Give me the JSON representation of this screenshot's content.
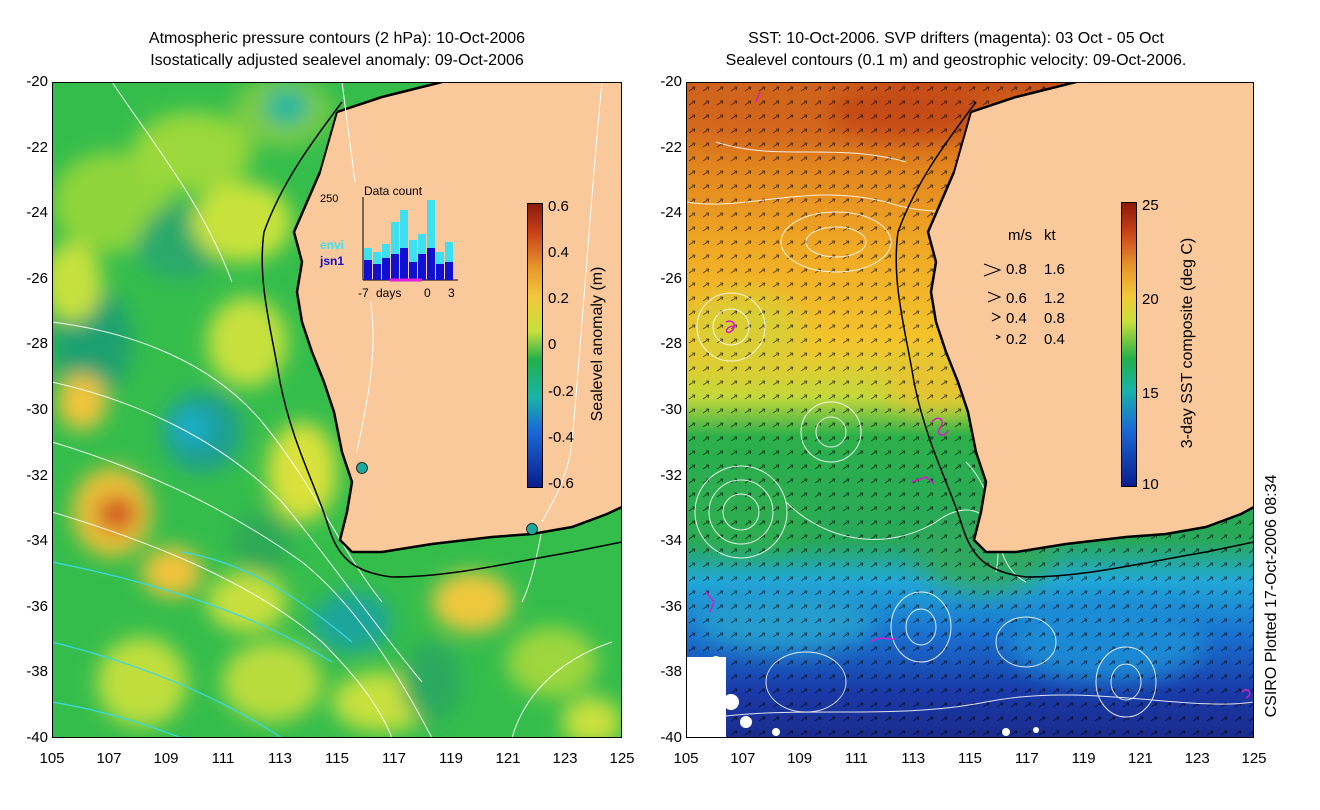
{
  "left_panel": {
    "title_line1": "Atmospheric pressure contours (2 hPa): 10-Oct-2006",
    "title_line2": "Isostatically adjusted sealevel anomaly: 09-Oct-2006",
    "colorbar_label": "Sealevel anomaly (m)",
    "colorbar_ticks": [
      "0.6",
      "0.4",
      "0.2",
      "0",
      "-0.2",
      "-0.4",
      "-0.6"
    ],
    "inset": {
      "title": "Data count",
      "ymax_label": "250",
      "legend": [
        "envi",
        "jsn1"
      ],
      "xlabels": [
        "-7",
        "days",
        "0",
        "3"
      ]
    }
  },
  "right_panel": {
    "title_line1": "SST: 10-Oct-2006. SVP drifters (magenta): 03 Oct - 05 Oct",
    "title_line2": "Sealevel contours (0.1 m) and geostrophic velocity: 09-Oct-2006.",
    "colorbar_label": "3-day SST composite (deg C)",
    "colorbar_ticks": [
      "25",
      "20",
      "15",
      "10"
    ],
    "speed_legend": {
      "header_ms": "m/s",
      "header_kt": "kt",
      "rows": [
        {
          "ms": "0.8",
          "kt": "1.6"
        },
        {
          "ms": "0.6",
          "kt": "1.2"
        },
        {
          "ms": "0.4",
          "kt": "0.8"
        },
        {
          "ms": "0.2",
          "kt": "0.4"
        }
      ]
    }
  },
  "axes": {
    "lat_labels": [
      "-20",
      "-22",
      "-24",
      "-26",
      "-28",
      "-30",
      "-32",
      "-34",
      "-36",
      "-38",
      "-40"
    ],
    "lon_labels": [
      "105",
      "107",
      "109",
      "111",
      "113",
      "115",
      "117",
      "119",
      "121",
      "123",
      "125"
    ]
  },
  "credit": "CSIRO Plotted 17-Oct-2006 08:34",
  "colors": {
    "land": "#f9c89b",
    "ocean_green": "#28b84a",
    "coast": "#000000",
    "drifter": "#d21ec8"
  }
}
